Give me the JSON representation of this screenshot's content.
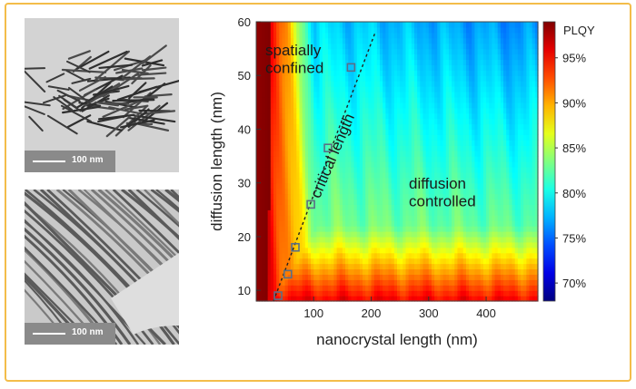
{
  "images": {
    "top": {
      "scale_label": "100 nm"
    },
    "bottom": {
      "scale_label": "100 nm"
    }
  },
  "chart_data": {
    "type": "heatmap",
    "title": "",
    "xlabel": "nanocrystal length (nm)",
    "ylabel": "diffusion length (nm)",
    "xlim": [
      0,
      490
    ],
    "ylim": [
      8,
      60
    ],
    "x_ticks": [
      100,
      200,
      300,
      400
    ],
    "y_ticks": [
      10,
      20,
      30,
      40,
      50,
      60
    ],
    "colorbar": {
      "label": "PLQY",
      "range": [
        68,
        99
      ],
      "ticks": [
        "95%",
        "90%",
        "85%",
        "80%",
        "75%",
        "70%"
      ],
      "tick_values": [
        95,
        90,
        85,
        80,
        75,
        70
      ]
    },
    "annotations": [
      {
        "text": "spatially\nconfined",
        "region": "upper-left"
      },
      {
        "text": "critical length",
        "region": "along dashed line"
      },
      {
        "text": "diffusion\ncontrolled",
        "region": "center-right"
      }
    ],
    "critical_points": {
      "x": [
        38,
        55,
        68,
        95,
        125,
        165
      ],
      "y": [
        9,
        13,
        18,
        26,
        36.5,
        51.5
      ]
    },
    "fit_line": {
      "x": [
        30,
        207
      ],
      "y": [
        8,
        58
      ]
    }
  }
}
